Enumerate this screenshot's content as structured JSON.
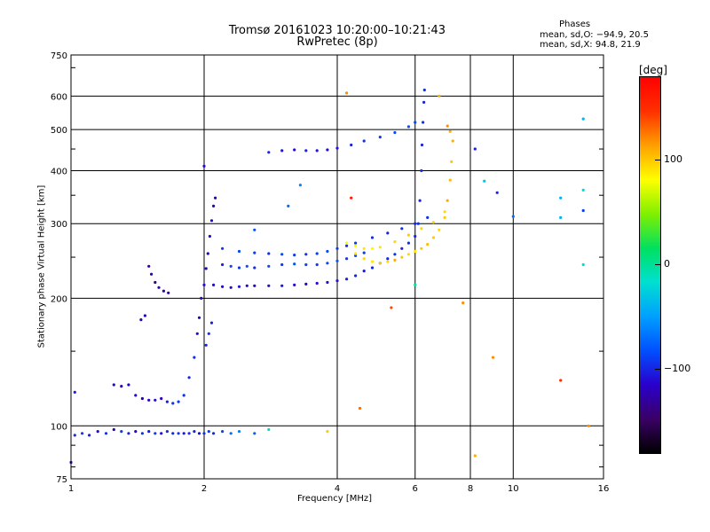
{
  "header": {
    "title_line1": "Tromsø 20161023 10:20:00–10:21:43",
    "title_line2": "RwPretec (8p)"
  },
  "stats": {
    "heading": "Phases",
    "line_o": "mean, sd,O: −94.9, 20.5",
    "line_x": "mean, sd,X:  94.8, 21.9"
  },
  "colorbar": {
    "unit": "[deg]",
    "ticks": [
      "100",
      "0",
      "−100"
    ],
    "tick_values": [
      100,
      0,
      -100
    ],
    "range": [
      -180,
      180
    ],
    "colormap": [
      "#000000",
      "#3a0066",
      "#2a00cc",
      "#0050ff",
      "#00a0ff",
      "#00e0d0",
      "#00e060",
      "#80f000",
      "#ffff00",
      "#ffa000",
      "#ff3000",
      "#ff0000"
    ]
  },
  "chart_data": {
    "type": "scatter",
    "xlabel": "Frequency [MHz]",
    "ylabel": "Stationary phase Virtual Height [km]",
    "x_scale": "log",
    "y_scale": "log",
    "xlim": [
      1,
      16
    ],
    "ylim": [
      75,
      750
    ],
    "grid": true,
    "x_ticks": [
      1,
      2,
      4,
      6,
      8,
      10,
      16
    ],
    "x_tick_labels": [
      "1",
      "2",
      "4",
      "6",
      "8",
      "10",
      "16"
    ],
    "y_ticks": [
      75,
      100,
      200,
      300,
      400,
      500,
      600,
      750
    ],
    "y_tick_labels": [
      "75",
      "100",
      "200",
      "300",
      "400",
      "500",
      "600",
      "750"
    ],
    "series": [
      {
        "mode": "O",
        "points": [
          [
            1.02,
            95,
            -95
          ],
          [
            1.06,
            96,
            -90
          ],
          [
            1.1,
            95,
            -100
          ],
          [
            1.15,
            97,
            -110
          ],
          [
            1.2,
            96,
            -95
          ],
          [
            1.25,
            98,
            -120
          ],
          [
            1.3,
            97,
            -90
          ],
          [
            1.35,
            96,
            -100
          ],
          [
            1.4,
            97,
            -115
          ],
          [
            1.45,
            96,
            -95
          ],
          [
            1.5,
            97,
            -105
          ],
          [
            1.55,
            96,
            -90
          ],
          [
            1.6,
            96,
            -110
          ],
          [
            1.65,
            97,
            -95
          ],
          [
            1.7,
            96,
            -100
          ],
          [
            1.75,
            96,
            -90
          ],
          [
            1.8,
            96,
            -105
          ],
          [
            1.85,
            96,
            -95
          ],
          [
            1.9,
            97,
            -100
          ],
          [
            1.95,
            96,
            -110
          ],
          [
            2.0,
            96,
            -95
          ],
          [
            2.05,
            97,
            -90
          ],
          [
            2.1,
            96,
            -100
          ],
          [
            2.2,
            97,
            -85
          ],
          [
            2.3,
            96,
            -70
          ],
          [
            2.4,
            97,
            -60
          ],
          [
            2.6,
            96,
            -75
          ],
          [
            1.25,
            125,
            -110
          ],
          [
            1.3,
            124,
            -120
          ],
          [
            1.35,
            125,
            -115
          ],
          [
            1.4,
            118,
            -110
          ],
          [
            1.45,
            116,
            -125
          ],
          [
            1.5,
            115,
            -120
          ],
          [
            1.55,
            115,
            -110
          ],
          [
            1.6,
            116,
            -115
          ],
          [
            1.65,
            114,
            -100
          ],
          [
            1.7,
            113,
            -95
          ],
          [
            1.75,
            114,
            -90
          ],
          [
            1.8,
            118,
            -95
          ],
          [
            1.5,
            238,
            -130
          ],
          [
            1.52,
            228,
            -125
          ],
          [
            1.55,
            218,
            -135
          ],
          [
            1.58,
            212,
            -120
          ],
          [
            1.62,
            208,
            -125
          ],
          [
            1.66,
            206,
            -130
          ],
          [
            1.44,
            178,
            -120
          ],
          [
            1.47,
            182,
            -115
          ],
          [
            1.85,
            130,
            -100
          ],
          [
            1.9,
            145,
            -95
          ],
          [
            1.93,
            165,
            -110
          ],
          [
            1.95,
            180,
            -120
          ],
          [
            1.97,
            200,
            -115
          ],
          [
            2.0,
            215,
            -110
          ],
          [
            2.02,
            235,
            -115
          ],
          [
            2.04,
            255,
            -120
          ],
          [
            2.06,
            280,
            -110
          ],
          [
            2.08,
            305,
            -115
          ],
          [
            2.1,
            330,
            -120
          ],
          [
            2.12,
            345,
            -125
          ],
          [
            2.02,
            155,
            -100
          ],
          [
            2.05,
            165,
            -95
          ],
          [
            2.08,
            175,
            -100
          ],
          [
            2.1,
            215,
            -110
          ],
          [
            2.2,
            213,
            -115
          ],
          [
            2.3,
            212,
            -110
          ],
          [
            2.4,
            213,
            -105
          ],
          [
            2.5,
            214,
            -110
          ],
          [
            2.6,
            214,
            -115
          ],
          [
            2.8,
            214,
            -110
          ],
          [
            3.0,
            214,
            -105
          ],
          [
            3.2,
            215,
            -110
          ],
          [
            3.4,
            216,
            -115
          ],
          [
            3.6,
            217,
            -110
          ],
          [
            3.8,
            218,
            -110
          ],
          [
            4.0,
            220,
            -105
          ],
          [
            4.2,
            222,
            -100
          ],
          [
            4.4,
            226,
            -100
          ],
          [
            4.6,
            232,
            -105
          ],
          [
            4.8,
            236,
            -100
          ],
          [
            5.0,
            242,
            -95
          ],
          [
            5.2,
            248,
            -100
          ],
          [
            5.4,
            254,
            -95
          ],
          [
            5.6,
            262,
            -100
          ],
          [
            5.8,
            270,
            -95
          ],
          [
            6.0,
            280,
            -100
          ],
          [
            6.1,
            300,
            -95
          ],
          [
            6.15,
            340,
            -100
          ],
          [
            6.2,
            400,
            -95
          ],
          [
            6.22,
            460,
            -100
          ],
          [
            6.25,
            520,
            -95
          ],
          [
            6.28,
            580,
            -100
          ],
          [
            6.3,
            620,
            -95
          ],
          [
            2.2,
            240,
            -100
          ],
          [
            2.3,
            238,
            -85
          ],
          [
            2.4,
            236,
            -90
          ],
          [
            2.5,
            238,
            -80
          ],
          [
            2.6,
            236,
            -95
          ],
          [
            2.8,
            238,
            -85
          ],
          [
            3.0,
            240,
            -90
          ],
          [
            3.2,
            241,
            -80
          ],
          [
            3.4,
            240,
            -85
          ],
          [
            3.6,
            240,
            -90
          ],
          [
            3.8,
            242,
            -85
          ],
          [
            4.0,
            245,
            -80
          ],
          [
            4.2,
            248,
            -90
          ],
          [
            4.4,
            252,
            -85
          ],
          [
            4.6,
            256,
            -90
          ],
          [
            2.2,
            262,
            -90
          ],
          [
            2.4,
            258,
            -85
          ],
          [
            2.6,
            256,
            -90
          ],
          [
            2.8,
            255,
            -95
          ],
          [
            3.0,
            254,
            -85
          ],
          [
            3.2,
            253,
            -90
          ],
          [
            3.4,
            254,
            -95
          ],
          [
            3.6,
            255,
            -90
          ],
          [
            3.8,
            258,
            -85
          ],
          [
            4.0,
            262,
            -90
          ],
          [
            4.2,
            266,
            -95
          ],
          [
            4.4,
            270,
            -90
          ],
          [
            4.8,
            278,
            -95
          ],
          [
            5.2,
            285,
            -100
          ],
          [
            5.6,
            292,
            -95
          ],
          [
            6.0,
            300,
            -100
          ],
          [
            6.4,
            310,
            -95
          ],
          [
            2.8,
            442,
            -100
          ],
          [
            3.0,
            446,
            -105
          ],
          [
            3.2,
            448,
            -110
          ],
          [
            3.4,
            446,
            -100
          ],
          [
            3.6,
            446,
            -105
          ],
          [
            3.8,
            448,
            -110
          ],
          [
            4.0,
            452,
            -105
          ],
          [
            4.3,
            460,
            -100
          ],
          [
            4.6,
            470,
            -95
          ],
          [
            5.0,
            480,
            -90
          ],
          [
            5.4,
            492,
            -85
          ],
          [
            5.8,
            508,
            -80
          ],
          [
            6.0,
            520,
            -85
          ]
        ]
      },
      {
        "mode": "X",
        "points": [
          [
            4.4,
            255,
            90
          ],
          [
            4.6,
            248,
            95
          ],
          [
            4.8,
            244,
            90
          ],
          [
            5.0,
            242,
            100
          ],
          [
            5.2,
            244,
            95
          ],
          [
            5.4,
            246,
            110
          ],
          [
            5.6,
            250,
            100
          ],
          [
            5.8,
            254,
            95
          ],
          [
            6.0,
            258,
            90
          ],
          [
            6.2,
            262,
            100
          ],
          [
            6.4,
            268,
            105
          ],
          [
            6.6,
            278,
            100
          ],
          [
            6.8,
            290,
            95
          ],
          [
            7.0,
            310,
            100
          ],
          [
            7.1,
            340,
            110
          ],
          [
            7.2,
            380,
            105
          ],
          [
            7.25,
            420,
            100
          ],
          [
            7.3,
            470,
            110
          ],
          [
            4.2,
            270,
            80
          ],
          [
            4.4,
            266,
            85
          ],
          [
            4.6,
            262,
            90
          ],
          [
            4.8,
            262,
            85
          ],
          [
            5.0,
            264,
            90
          ],
          [
            5.4,
            272,
            95
          ],
          [
            5.8,
            282,
            100
          ],
          [
            6.2,
            292,
            95
          ],
          [
            6.6,
            302,
            100
          ],
          [
            7.0,
            320,
            95
          ],
          [
            6.8,
            600,
            110
          ],
          [
            4.2,
            610,
            120
          ],
          [
            7.1,
            510,
            120
          ],
          [
            7.2,
            495,
            110
          ],
          [
            5.3,
            190,
            140
          ],
          [
            4.5,
            110,
            130
          ],
          [
            4.3,
            345,
            160
          ],
          [
            7.7,
            195,
            120
          ]
        ]
      },
      {
        "mode": "scatter",
        "points": [
          [
            2.0,
            410,
            -110
          ],
          [
            3.3,
            370,
            -60
          ],
          [
            3.1,
            330,
            -70
          ],
          [
            2.6,
            290,
            -80
          ],
          [
            8.2,
            450,
            -100
          ],
          [
            9.2,
            355,
            -100
          ],
          [
            10.0,
            312,
            -70
          ],
          [
            12.8,
            345,
            -40
          ],
          [
            14.4,
            530,
            -40
          ],
          [
            14.4,
            360,
            -20
          ],
          [
            14.4,
            322,
            -90
          ],
          [
            14.4,
            240,
            -20
          ],
          [
            12.8,
            310,
            -40
          ],
          [
            8.6,
            378,
            -30
          ],
          [
            6.0,
            215,
            0
          ],
          [
            9.0,
            145,
            120
          ],
          [
            8.2,
            85,
            110
          ],
          [
            12.8,
            128,
            150
          ],
          [
            14.8,
            100,
            120
          ],
          [
            3.8,
            97,
            100
          ],
          [
            2.8,
            98,
            -20
          ],
          [
            1.02,
            120,
            -100
          ],
          [
            1.0,
            82,
            -110
          ]
        ]
      }
    ]
  }
}
